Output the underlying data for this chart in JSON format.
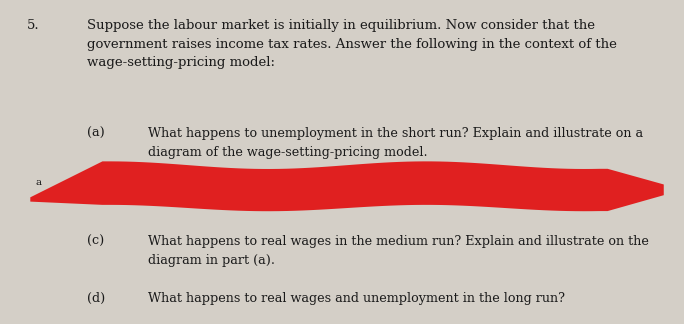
{
  "background_color": "#d4cfc7",
  "text_color": "#1a1a1a",
  "question_number": "5.",
  "main_text": "Suppose the labour market is initially in equilibrium. Now consider that the\ngovernment raises income tax rates. Answer the following in the context of the\nwage-setting-pricing model:",
  "sub_a_label": "(a)",
  "sub_a_text": "What happens to unemployment in the short run? Explain and illustrate on a\ndiagram of the wage-setting-pricing model.",
  "sub_c_label": "(c)",
  "sub_c_text": "What happens to real wages in the medium run? Explain and illustrate on the\ndiagram in part (a).",
  "sub_d_label": "(d)",
  "sub_d_text": "What happens to real wages and unemployment in the long run?",
  "redaction_color": "#e02020",
  "font_size_main": 9.5,
  "font_size_sub": 9.2
}
